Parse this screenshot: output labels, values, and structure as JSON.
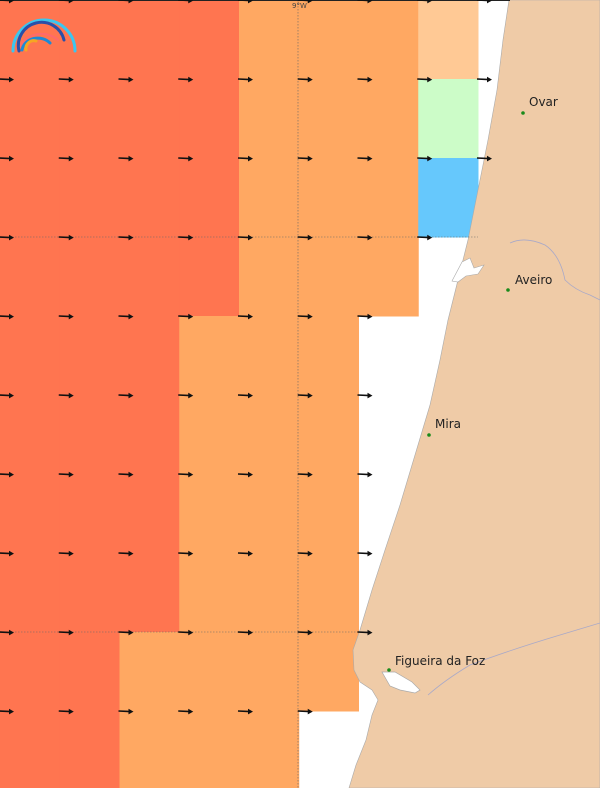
{
  "map": {
    "graticule_label": "9°W",
    "colors": {
      "red": "#ff7550",
      "orange": "#ffa862",
      "light_orange": "#ffc995",
      "green": "#ccfcc8",
      "blue": "#66c8fc",
      "land": "#efcba7",
      "sea": "#ffffff",
      "place_dot": "#1a8a1a"
    },
    "grid_cells": [
      [
        "red",
        "red",
        "red",
        "red",
        "orange",
        "orange",
        "orange",
        "light_orange"
      ],
      [
        "red",
        "red",
        "red",
        "red",
        "orange",
        "orange",
        "orange",
        "green"
      ],
      [
        "red",
        "red",
        "red",
        "red",
        "orange",
        "orange",
        "orange",
        "blue"
      ],
      [
        "red",
        "red",
        "red",
        "red",
        "orange",
        "orange",
        "orange"
      ],
      [
        "red",
        "red",
        "red",
        "orange",
        "orange",
        "orange"
      ],
      [
        "red",
        "red",
        "red",
        "orange",
        "orange",
        "orange"
      ],
      [
        "red",
        "red",
        "red",
        "orange",
        "orange",
        "orange"
      ],
      [
        "red",
        "red",
        "red",
        "orange",
        "orange",
        "orange"
      ],
      [
        "red",
        "red",
        "orange",
        "orange",
        "orange",
        "orange"
      ],
      [
        "red",
        "red",
        "orange",
        "orange",
        "orange"
      ]
    ],
    "arrow_direction": "east",
    "places": [
      {
        "name": "Ovar"
      },
      {
        "name": "Aveiro"
      },
      {
        "name": "Mira"
      },
      {
        "name": "Figueira da Foz"
      }
    ],
    "logo": "rainbow-arcs-logo"
  }
}
